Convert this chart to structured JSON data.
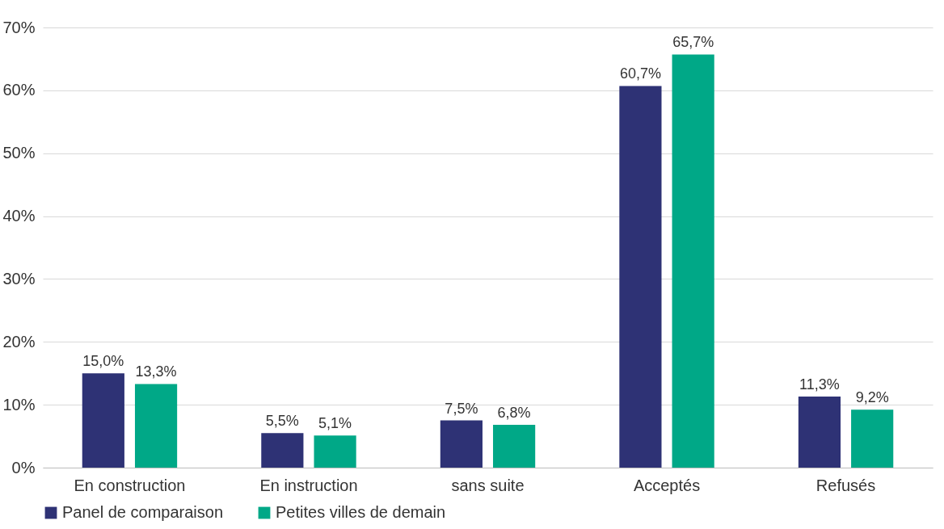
{
  "chart_data": {
    "type": "bar",
    "categories": [
      "En construction",
      "En instruction",
      "sans suite",
      "Acceptés",
      "Refusés"
    ],
    "series": [
      {
        "name": "Panel de comparaison",
        "color": "#2e3275",
        "values": [
          15.0,
          5.5,
          7.5,
          60.7,
          11.3
        ],
        "value_labels": [
          "15,0%",
          "5,5%",
          "7,5%",
          "60,7%",
          "11,3%"
        ]
      },
      {
        "name": "Petites villes de demain",
        "color": "#00a887",
        "values": [
          13.3,
          5.1,
          6.8,
          65.7,
          9.2
        ],
        "value_labels": [
          "13,3%",
          "5,1%",
          "6,8%",
          "65,7%",
          "9,2%"
        ]
      }
    ],
    "ylim": [
      0,
      70
    ],
    "yticks": [
      {
        "value": 0,
        "label": "0%"
      },
      {
        "value": 10,
        "label": "10%"
      },
      {
        "value": 20,
        "label": "20%"
      },
      {
        "value": 30,
        "label": "30%"
      },
      {
        "value": 40,
        "label": "40%"
      },
      {
        "value": 50,
        "label": "50%"
      },
      {
        "value": 60,
        "label": "60%"
      },
      {
        "value": 70,
        "label": "70%"
      }
    ],
    "grid": "y",
    "legend": "bottom"
  }
}
